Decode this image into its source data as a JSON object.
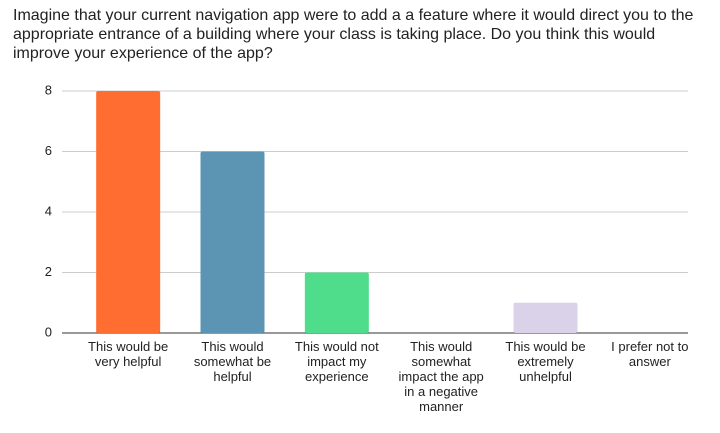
{
  "chart_data": {
    "type": "bar",
    "title": "Imagine that your current navigation app were to add a a feature where it would direct you to the appropriate entrance of a building where your class is taking place. Do you think this would improve your experience of the app?",
    "categories": [
      "This would be very helpful",
      "This would somewhat be helpful",
      "This would not impact my experience",
      "This would somewhat impact the app in a negative manner",
      "This would be extremely unhelpful",
      "I prefer not to answer"
    ],
    "values": [
      8,
      6,
      2,
      0,
      1,
      0
    ],
    "colors": [
      "#ff6d31",
      "#5b95b3",
      "#4fdd8c",
      "#b4a7d6",
      "#d9d2e9",
      "#9e9e9e"
    ],
    "ylim": [
      0,
      8
    ],
    "yticks": [
      0,
      2,
      4,
      6,
      8
    ],
    "grid": true
  }
}
